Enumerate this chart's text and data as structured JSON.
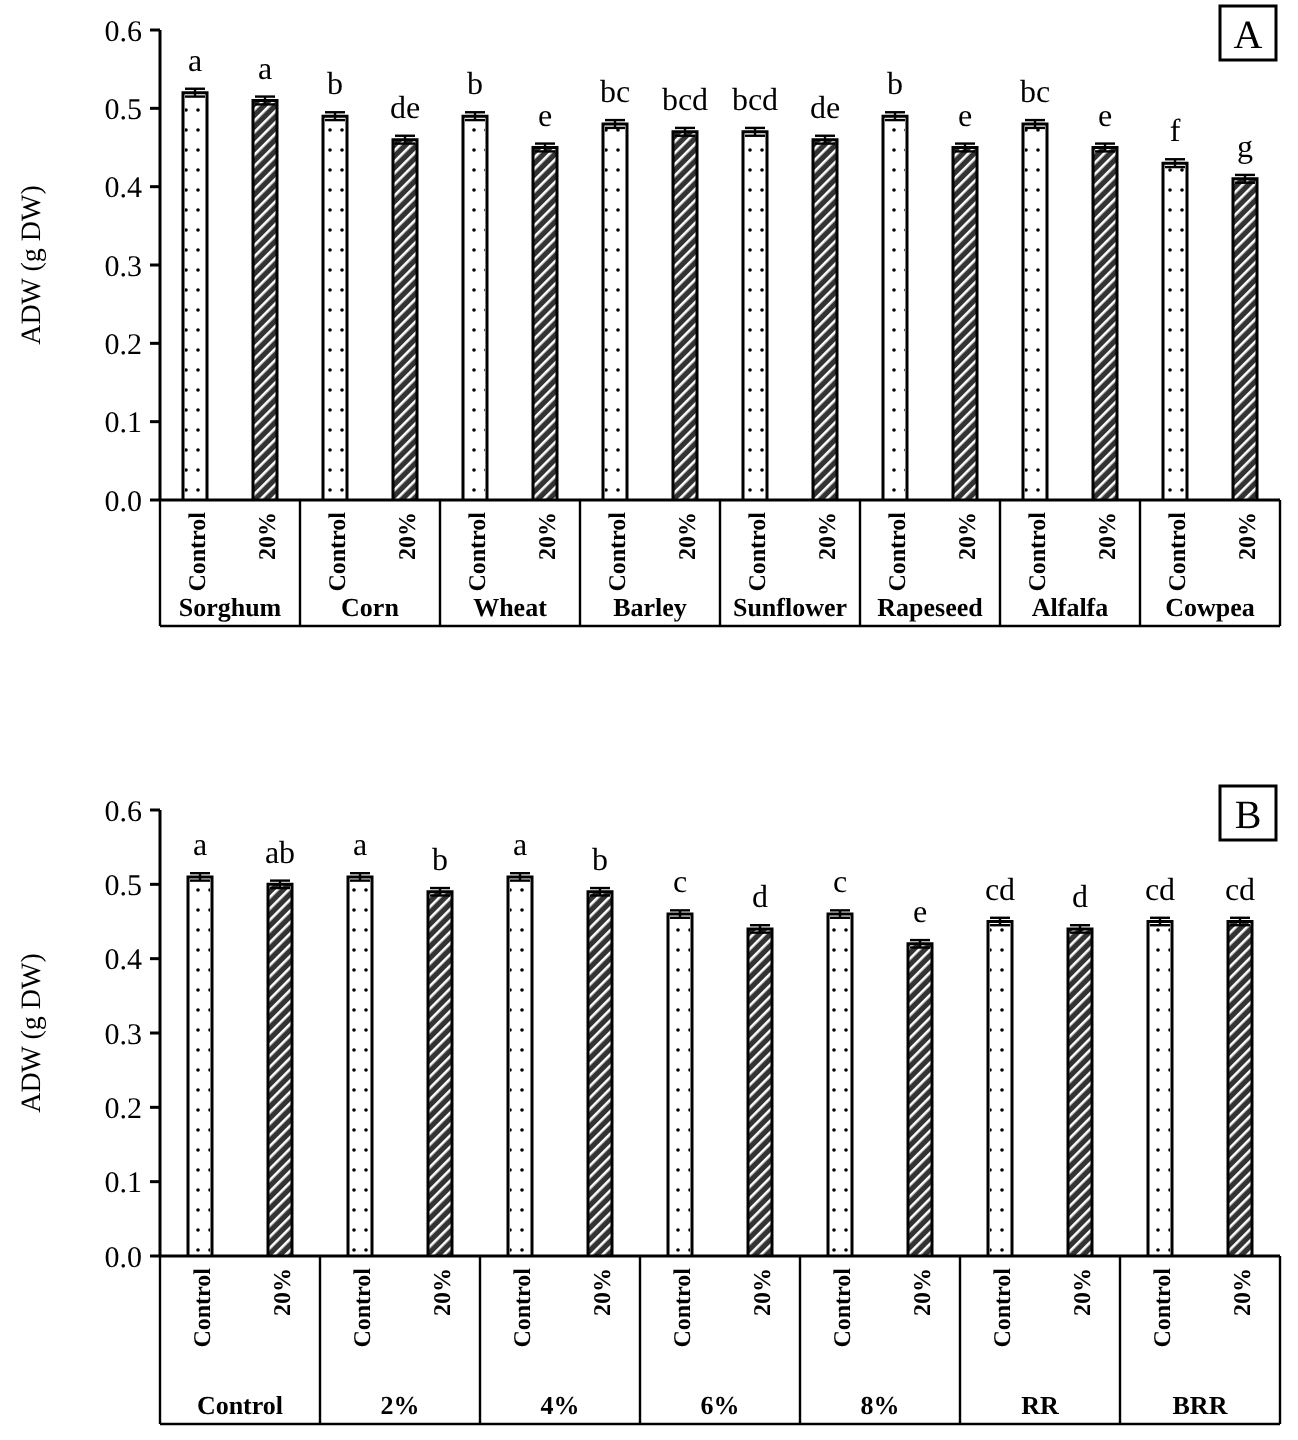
{
  "chart_data": [
    {
      "type": "bar",
      "title": "A",
      "ylabel": "ADW (g DW)",
      "categories": [
        "Sorghum",
        "Corn",
        "Wheat",
        "Barley",
        "Sunflower",
        "Rapeseed",
        "Alfalfa",
        "Cowpea"
      ],
      "series": [
        {
          "name": "Control",
          "color": "#ffffff",
          "values": [
            0.52,
            0.49,
            0.49,
            0.48,
            0.47,
            0.49,
            0.48,
            0.43
          ],
          "errors": [
            0.005,
            0.005,
            0.005,
            0.005,
            0.005,
            0.005,
            0.005,
            0.005
          ],
          "value_labels": [
            "a",
            "b",
            "b",
            "bc",
            "bcd",
            "b",
            "bc",
            "f"
          ]
        },
        {
          "name": "20%",
          "color": "#333333",
          "values": [
            0.51,
            0.46,
            0.45,
            0.47,
            0.46,
            0.45,
            0.45,
            0.41
          ],
          "errors": [
            0.005,
            0.005,
            0.005,
            0.005,
            0.005,
            0.005,
            0.005,
            0.005
          ],
          "value_labels": [
            "a",
            "de",
            "e",
            "bcd",
            "de",
            "e",
            "e",
            "g"
          ]
        }
      ],
      "ylim": [
        0,
        0.6
      ],
      "yticks": [
        {
          "value": 0,
          "label": "0.0"
        },
        0.1,
        0.2,
        0.3,
        0.4,
        0.5,
        0.6
      ],
      "grid": false,
      "legend": false
    },
    {
      "type": "bar",
      "title": "B",
      "ylabel": "ADW (g DW)",
      "categories": [
        "Control",
        "2%",
        "4%",
        "6%",
        "8%",
        "RR",
        "BRR"
      ],
      "series": [
        {
          "name": "Control",
          "color": "#ffffff",
          "values": [
            0.51,
            0.51,
            0.51,
            0.46,
            0.46,
            0.45,
            0.45
          ],
          "errors": [
            0.005,
            0.005,
            0.005,
            0.005,
            0.005,
            0.005,
            0.005
          ],
          "value_labels": [
            "a",
            "a",
            "a",
            "c",
            "c",
            "cd",
            "cd"
          ]
        },
        {
          "name": "20%",
          "color": "#333333",
          "values": [
            0.5,
            0.49,
            0.49,
            0.44,
            0.42,
            0.44,
            0.45
          ],
          "errors": [
            0.005,
            0.005,
            0.005,
            0.005,
            0.005,
            0.005,
            0.005
          ],
          "value_labels": [
            "ab",
            "b",
            "b",
            "d",
            "e",
            "d",
            "cd"
          ]
        }
      ],
      "ylim": [
        0,
        0.6
      ],
      "yticks": [
        {
          "value": 0,
          "label": "0.0"
        },
        0.1,
        0.2,
        0.3,
        0.4,
        0.5,
        0.6
      ],
      "grid": false,
      "legend": false
    }
  ]
}
